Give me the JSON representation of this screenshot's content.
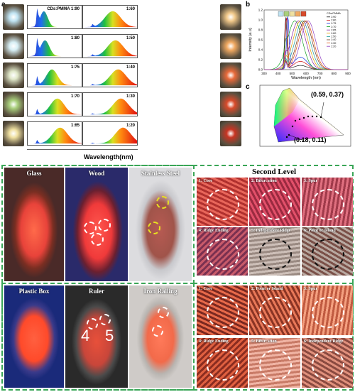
{
  "panel_labels": {
    "a": "a",
    "b": "b",
    "c": "c"
  },
  "panel_a": {
    "left_ratios": [
      "CDs:PMMA 1:90",
      "1:80",
      "1:75",
      "1:70",
      "1:65"
    ],
    "right_ratios": [
      "1:60",
      "1:50",
      "1:40",
      "1:30",
      "1:20"
    ],
    "xlabel": "Wavelength(nm)",
    "left_photo_colors": [
      "#bfe3f2",
      "#d6eef4",
      "#dfe7c8",
      "#a9cf7c",
      "#efe0a0"
    ],
    "right_photo_colors": [
      "#f2c98a",
      "#f0a860",
      "#e86a3a",
      "#d84a2a",
      "#c83422"
    ]
  },
  "panel_b": {
    "ylabel": "Intensity (a.u)",
    "xlabel": "Wavelength (nm)",
    "legend_title": "CDs:PMMA",
    "legend": [
      "1:90",
      "1:80",
      "1:75",
      "1:70",
      "1:65",
      "1:60",
      "1:50",
      "1:40",
      "1:30",
      "1:20"
    ],
    "xticks": [
      "300",
      "400",
      "500",
      "600",
      "700",
      "800",
      "900"
    ],
    "yticks": [
      "0.0",
      "0.2",
      "0.4",
      "0.6",
      "0.8",
      "1.0",
      "1.2"
    ]
  },
  "panel_c": {
    "coord_top": "(0.59, 0.37)",
    "coord_bottom": "(0.18, 0.11)"
  },
  "fingerprints_top": [
    "Glass",
    "Wood",
    "Stainless Steel"
  ],
  "fingerprints_bottom": [
    "Plastic Box",
    "Ruler",
    "Iron Railing"
  ],
  "second_level": {
    "title": "Second Level",
    "top_tiles": [
      "1: Core",
      "2: Bifurcation",
      "3: Spur",
      "4: Ridge Ending",
      "5: Independent Ridge",
      "6: Point or Island"
    ],
    "bottom_tiles": [
      "1: Core",
      "2: Point or Island",
      "3: Spur",
      "4: Ridge Ending",
      "5: Bifurcation",
      "6: Independent Ridge"
    ]
  },
  "ruler_digits": [
    "4",
    "5"
  ]
}
